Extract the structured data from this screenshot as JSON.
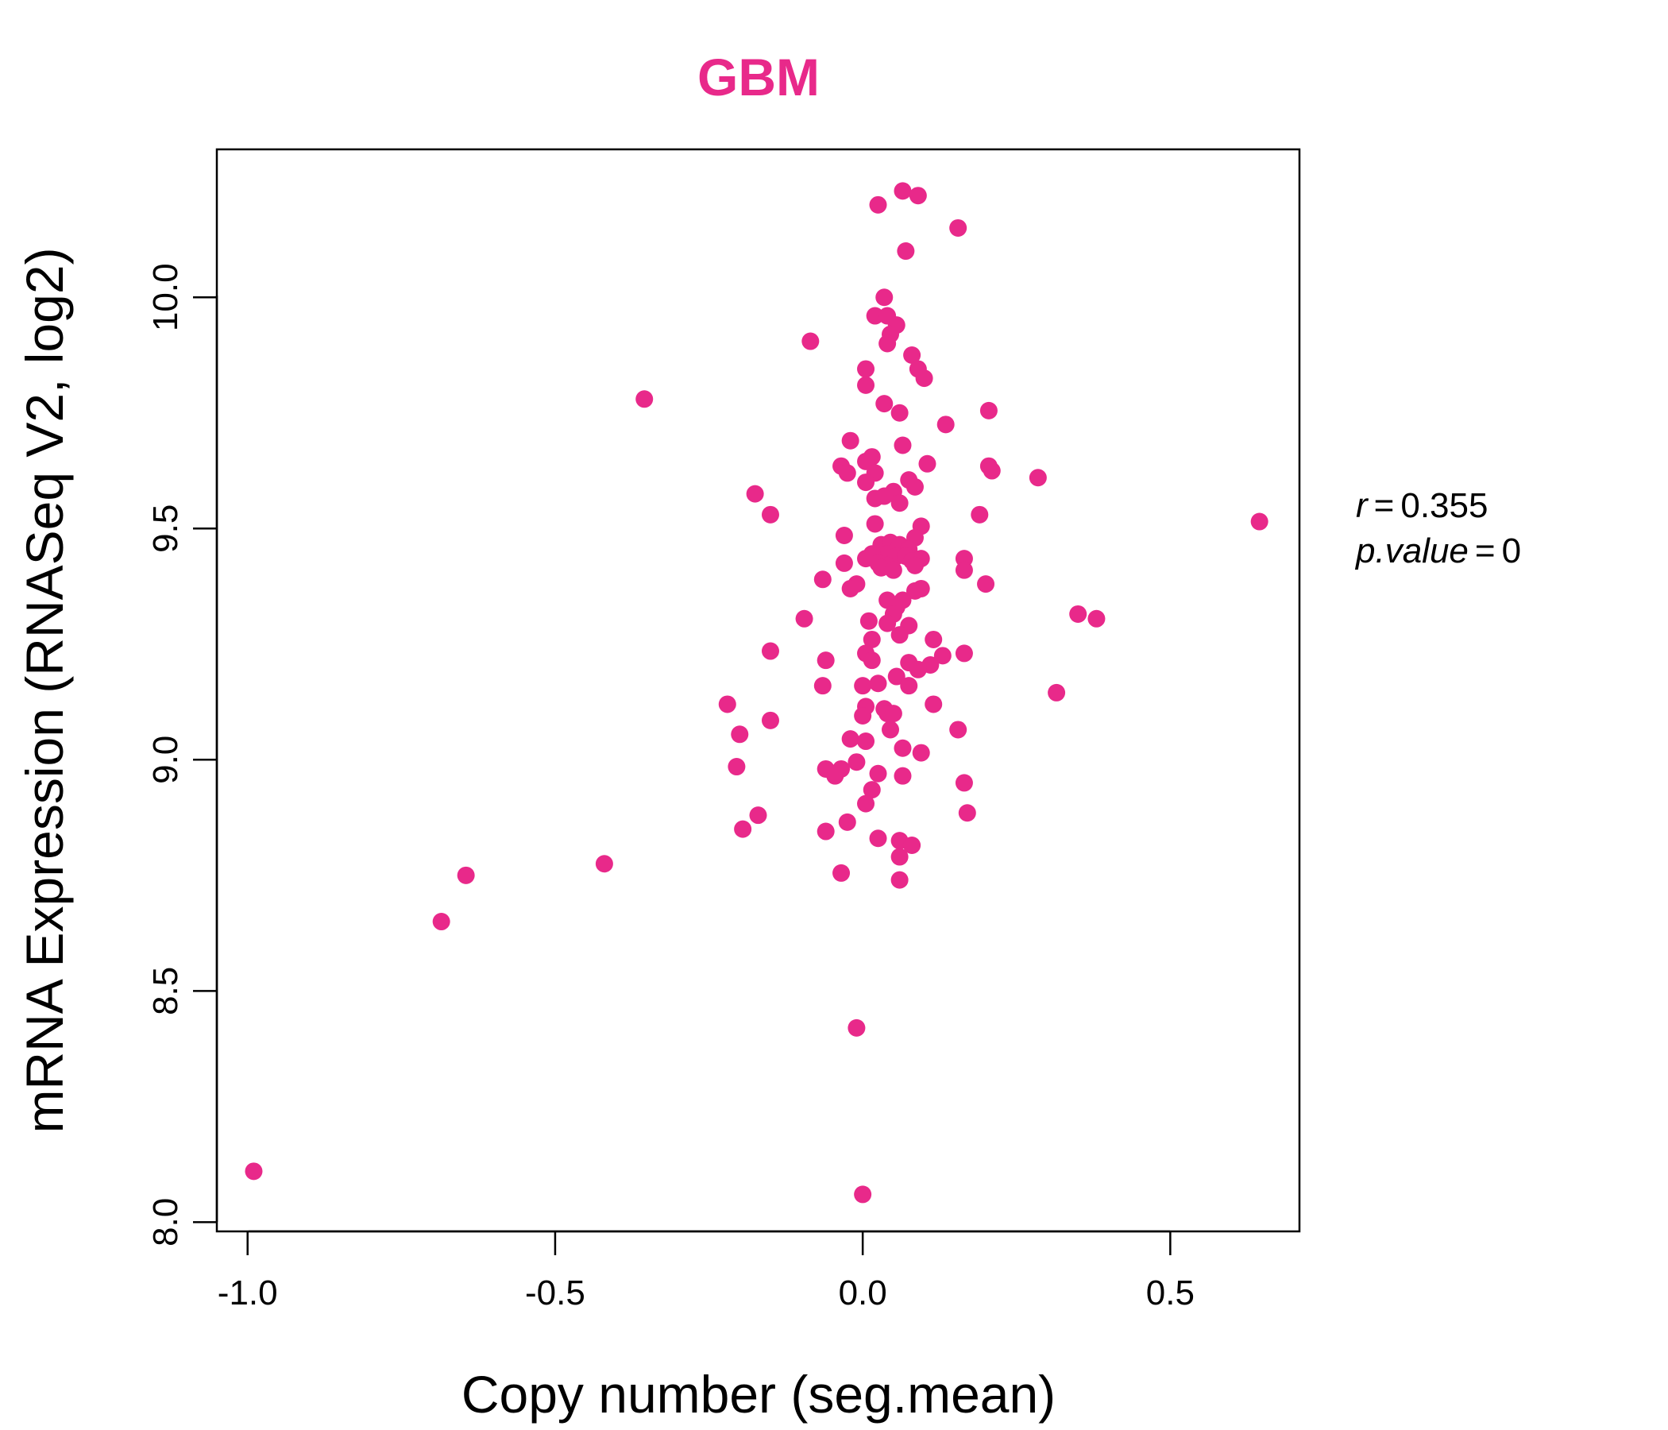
{
  "chart_data": {
    "type": "scatter",
    "title": "GBM",
    "xlabel": "Copy number (seg.mean)",
    "ylabel": "mRNA Expression (RNASeq V2, log2)",
    "xlim": [
      -1.05,
      0.71
    ],
    "ylim": [
      7.98,
      10.32
    ],
    "xticks": [
      -1.0,
      -0.5,
      0.0,
      0.5
    ],
    "xtick_labels": [
      "-1.0",
      "-0.5",
      "0.0",
      "0.5"
    ],
    "yticks": [
      8.0,
      8.5,
      9.0,
      9.5,
      10.0
    ],
    "ytick_labels": [
      "8.0",
      "8.5",
      "9.0",
      "9.5",
      "10.0"
    ],
    "grid": false,
    "stat_r_label": "r",
    "stat_r_value": "0.355",
    "stat_p_label": "p.value",
    "stat_p_value": "0",
    "colors": {
      "points": "#e8298a",
      "title": "#e8298a",
      "axis": "#000000"
    },
    "points": [
      [
        -0.99,
        8.11
      ],
      [
        -0.685,
        8.65
      ],
      [
        -0.645,
        8.75
      ],
      [
        -0.42,
        8.775
      ],
      [
        -0.355,
        9.78
      ],
      [
        0.0,
        8.06
      ],
      [
        -0.01,
        8.42
      ],
      [
        0.065,
        10.23
      ],
      [
        0.09,
        10.22
      ],
      [
        0.025,
        10.2
      ],
      [
        0.155,
        10.15
      ],
      [
        0.07,
        10.1
      ],
      [
        0.035,
        10.0
      ],
      [
        0.02,
        9.96
      ],
      [
        0.04,
        9.96
      ],
      [
        0.055,
        9.94
      ],
      [
        0.045,
        9.92
      ],
      [
        0.04,
        9.9
      ],
      [
        -0.085,
        9.905
      ],
      [
        0.08,
        9.875
      ],
      [
        0.005,
        9.845
      ],
      [
        0.09,
        9.845
      ],
      [
        0.1,
        9.825
      ],
      [
        0.005,
        9.81
      ],
      [
        0.035,
        9.77
      ],
      [
        0.06,
        9.75
      ],
      [
        0.205,
        9.755
      ],
      [
        0.135,
        9.725
      ],
      [
        -0.02,
        9.69
      ],
      [
        0.065,
        9.68
      ],
      [
        0.015,
        9.655
      ],
      [
        0.005,
        9.645
      ],
      [
        -0.035,
        9.635
      ],
      [
        0.105,
        9.64
      ],
      [
        0.205,
        9.635
      ],
      [
        0.21,
        9.625
      ],
      [
        -0.025,
        9.62
      ],
      [
        0.02,
        9.62
      ],
      [
        0.285,
        9.61
      ],
      [
        0.075,
        9.605
      ],
      [
        0.005,
        9.6
      ],
      [
        0.05,
        9.58
      ],
      [
        0.085,
        9.59
      ],
      [
        -0.175,
        9.575
      ],
      [
        0.02,
        9.565
      ],
      [
        0.035,
        9.57
      ],
      [
        0.06,
        9.555
      ],
      [
        -0.15,
        9.53
      ],
      [
        0.19,
        9.53
      ],
      [
        0.645,
        9.515
      ],
      [
        0.02,
        9.51
      ],
      [
        0.095,
        9.505
      ],
      [
        -0.03,
        9.485
      ],
      [
        0.085,
        9.48
      ],
      [
        0.03,
        9.465
      ],
      [
        0.045,
        9.47
      ],
      [
        0.06,
        9.465
      ],
      [
        0.075,
        9.455
      ],
      [
        0.04,
        9.445
      ],
      [
        0.015,
        9.445
      ],
      [
        0.005,
        9.435
      ],
      [
        0.055,
        9.44
      ],
      [
        0.07,
        9.44
      ],
      [
        0.08,
        9.43
      ],
      [
        0.095,
        9.435
      ],
      [
        0.165,
        9.435
      ],
      [
        -0.03,
        9.425
      ],
      [
        0.025,
        9.425
      ],
      [
        0.04,
        9.42
      ],
      [
        0.03,
        9.415
      ],
      [
        0.05,
        9.41
      ],
      [
        0.085,
        9.42
      ],
      [
        0.165,
        9.41
      ],
      [
        -0.065,
        9.39
      ],
      [
        0.2,
        9.38
      ],
      [
        -0.01,
        9.38
      ],
      [
        -0.02,
        9.37
      ],
      [
        0.085,
        9.365
      ],
      [
        0.095,
        9.37
      ],
      [
        0.04,
        9.345
      ],
      [
        0.065,
        9.345
      ],
      [
        0.055,
        9.33
      ],
      [
        0.05,
        9.315
      ],
      [
        0.35,
        9.315
      ],
      [
        0.38,
        9.305
      ],
      [
        -0.095,
        9.305
      ],
      [
        0.01,
        9.3
      ],
      [
        0.04,
        9.295
      ],
      [
        0.075,
        9.29
      ],
      [
        0.06,
        9.27
      ],
      [
        0.015,
        9.26
      ],
      [
        0.115,
        9.26
      ],
      [
        -0.15,
        9.235
      ],
      [
        0.005,
        9.23
      ],
      [
        0.165,
        9.23
      ],
      [
        0.13,
        9.225
      ],
      [
        0.015,
        9.215
      ],
      [
        -0.06,
        9.215
      ],
      [
        0.075,
        9.21
      ],
      [
        0.11,
        9.205
      ],
      [
        0.09,
        9.195
      ],
      [
        0.055,
        9.18
      ],
      [
        0.025,
        9.165
      ],
      [
        0.0,
        9.16
      ],
      [
        0.075,
        9.16
      ],
      [
        -0.065,
        9.16
      ],
      [
        0.315,
        9.145
      ],
      [
        -0.22,
        9.12
      ],
      [
        0.035,
        9.11
      ],
      [
        0.005,
        9.115
      ],
      [
        0.115,
        9.12
      ],
      [
        0.04,
        9.1
      ],
      [
        0.05,
        9.1
      ],
      [
        0.0,
        9.095
      ],
      [
        -0.15,
        9.085
      ],
      [
        0.045,
        9.065
      ],
      [
        0.155,
        9.065
      ],
      [
        -0.2,
        9.055
      ],
      [
        -0.02,
        9.045
      ],
      [
        0.005,
        9.04
      ],
      [
        0.065,
        9.025
      ],
      [
        0.095,
        9.015
      ],
      [
        -0.01,
        8.995
      ],
      [
        -0.205,
        8.985
      ],
      [
        -0.06,
        8.98
      ],
      [
        -0.035,
        8.98
      ],
      [
        -0.045,
        8.965
      ],
      [
        0.025,
        8.97
      ],
      [
        0.065,
        8.965
      ],
      [
        0.165,
        8.95
      ],
      [
        0.015,
        8.935
      ],
      [
        0.005,
        8.905
      ],
      [
        0.17,
        8.885
      ],
      [
        -0.17,
        8.88
      ],
      [
        -0.025,
        8.865
      ],
      [
        -0.195,
        8.85
      ],
      [
        -0.06,
        8.845
      ],
      [
        0.025,
        8.83
      ],
      [
        0.06,
        8.825
      ],
      [
        0.08,
        8.815
      ],
      [
        0.06,
        8.79
      ],
      [
        -0.035,
        8.755
      ],
      [
        0.06,
        8.74
      ]
    ]
  }
}
